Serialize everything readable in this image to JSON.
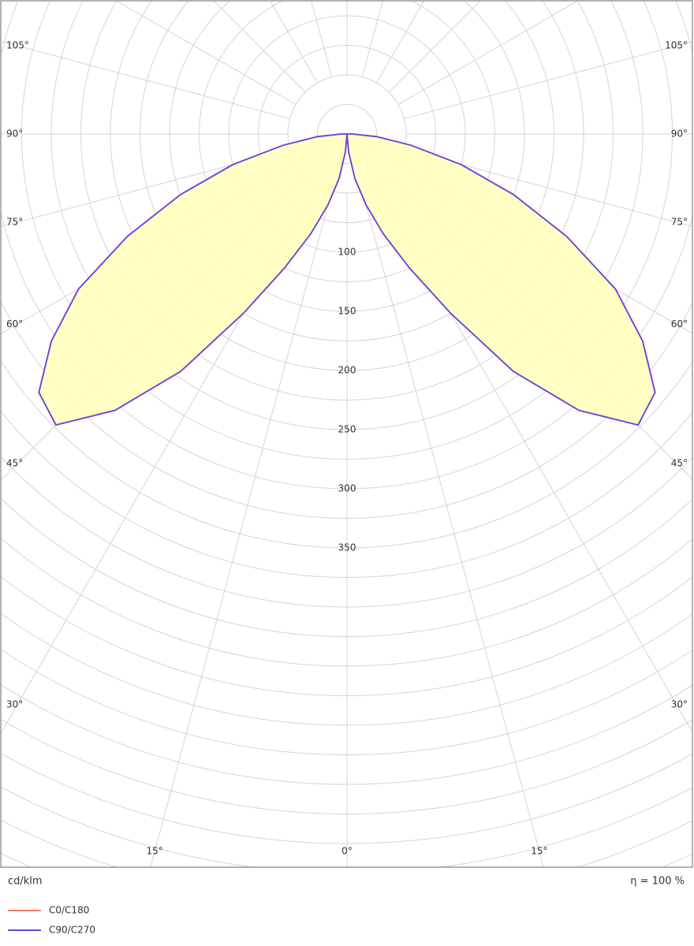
{
  "chart_data": {
    "type": "polar",
    "angles": [
      0,
      5,
      10,
      15,
      20,
      25,
      30,
      35,
      40,
      45,
      50,
      55,
      60,
      65,
      70,
      75,
      80,
      85,
      90
    ],
    "series": [
      {
        "name": "C0/C180",
        "color": "#f08070",
        "values": [
          0,
          15,
          38,
          62,
          90,
          125,
          175,
          245,
          305,
          348,
          340,
          305,
          262,
          205,
          150,
          100,
          55,
          25,
          5
        ]
      },
      {
        "name": "C90/C270",
        "color": "#6a44dc",
        "values": [
          0,
          15,
          38,
          62,
          90,
          125,
          175,
          245,
          305,
          348,
          340,
          305,
          262,
          205,
          150,
          100,
          55,
          25,
          5
        ]
      }
    ],
    "fill": "#ffffbe",
    "rlim": [
      0,
      700
    ],
    "grid_step": 25,
    "rticks": [
      100,
      150,
      200,
      250,
      300,
      350
    ],
    "angle_ticks": [
      {
        "value": 0,
        "label": "0°"
      },
      {
        "value": 15,
        "label": "15°"
      },
      {
        "value": 30,
        "label": "30°"
      },
      {
        "value": 45,
        "label": "45°"
      },
      {
        "value": 60,
        "label": "60°"
      },
      {
        "value": 75,
        "label": "75°"
      },
      {
        "value": 90,
        "label": "90°"
      },
      {
        "value": 105,
        "label": "105°"
      }
    ],
    "unit_label": "cd/klm",
    "efficiency_label": "η = 100 %"
  }
}
